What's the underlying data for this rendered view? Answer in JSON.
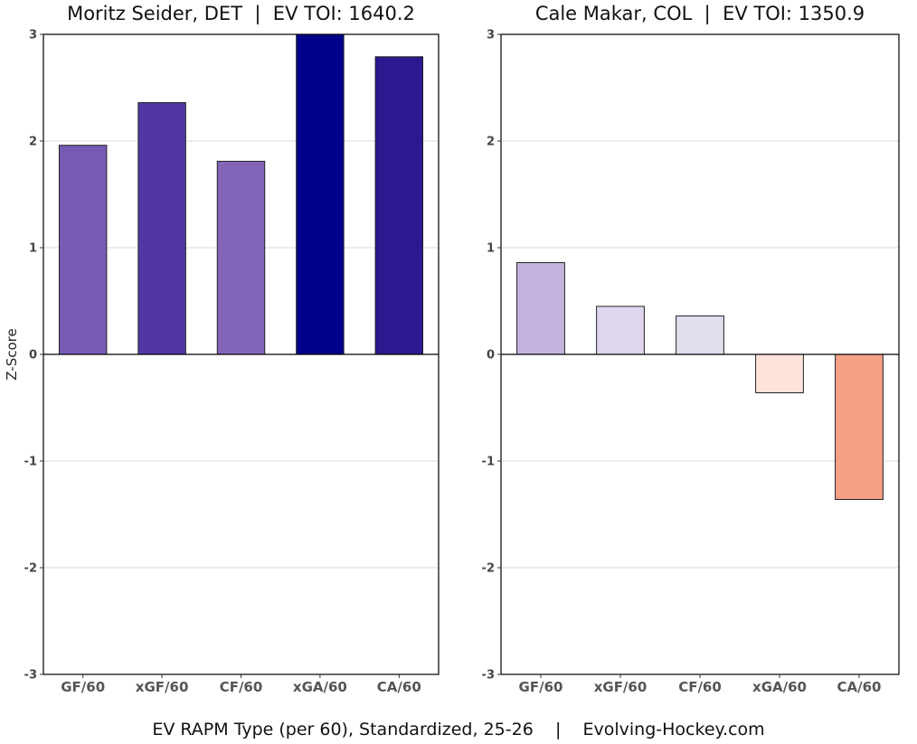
{
  "chart_data": [
    {
      "type": "bar",
      "title": "Moritz Seider, DET  |  EV TOI: 1640.2",
      "ylabel": "Z-Score",
      "xlabel": "",
      "ylim": [
        -3,
        3
      ],
      "yticks": [
        3,
        2,
        1,
        0,
        -1,
        -2,
        -3
      ],
      "grid": true,
      "categories": [
        "GF/60",
        "xGF/60",
        "CF/60",
        "xGA/60",
        "CA/60"
      ],
      "values": [
        1.96,
        2.36,
        1.81,
        3.0,
        2.79
      ],
      "colors": [
        "#775AB4",
        "#5237A3",
        "#8366BA",
        "#00008B",
        "#2B198F"
      ]
    },
    {
      "type": "bar",
      "title": "Cale Makar, COL  |  EV TOI: 1350.9",
      "ylabel": "",
      "xlabel": "",
      "ylim": [
        -3,
        3
      ],
      "yticks": [
        3,
        2,
        1,
        0,
        -1,
        -2,
        -3
      ],
      "grid": true,
      "categories": [
        "GF/60",
        "xGF/60",
        "CF/60",
        "xGA/60",
        "CA/60"
      ],
      "values": [
        0.86,
        0.45,
        0.36,
        -0.36,
        -1.36
      ],
      "colors": [
        "#C4B3DF",
        "#DFD6EE",
        "#E3DDF0",
        "#FEE3DB",
        "#F6A086"
      ]
    }
  ],
  "caption": "EV RAPM Type (per 60), Standardized, 25-26    |    Evolving-Hockey.com"
}
